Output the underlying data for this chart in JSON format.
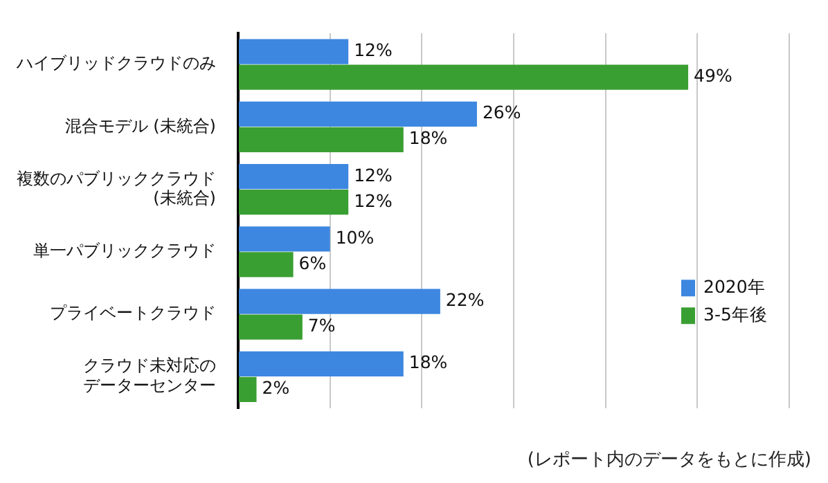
{
  "chart_data": {
    "type": "bar",
    "orientation": "horizontal",
    "categories": [
      "ハイブリッドクラウドのみ",
      "混合モデル (未統合)",
      "複数のパブリッククラウド (未統合)",
      "単一パブリッククラウド",
      "プライベートクラウド",
      "クラウド未対応のデーターセンター"
    ],
    "series": [
      {
        "name": "2020年",
        "color": "#3d87e0",
        "values": [
          12,
          26,
          12,
          10,
          22,
          18
        ],
        "value_labels": [
          "12%",
          "26%",
          "12%",
          "10%",
          "22%",
          "18%"
        ]
      },
      {
        "name": "3-5年後",
        "color": "#3a9f32",
        "values": [
          49,
          18,
          12,
          6,
          7,
          2
        ],
        "value_labels": [
          "49%",
          "18%",
          "12%",
          "6%",
          "7%",
          "2%"
        ]
      }
    ],
    "xlim": [
      0,
      60
    ],
    "xticks": [
      {
        "value": 0,
        "label": null
      },
      {
        "value": 10,
        "label": null
      },
      {
        "value": 20,
        "label": null
      },
      {
        "value": 30,
        "label": null
      },
      {
        "value": 40,
        "label": null
      },
      {
        "value": 50,
        "label": null
      },
      {
        "value": 60,
        "label": null
      }
    ],
    "grid": "x",
    "tick_labels": "y",
    "legend": "right",
    "annotations": [
      "(レポート内のデータをもとに作成)"
    ]
  }
}
